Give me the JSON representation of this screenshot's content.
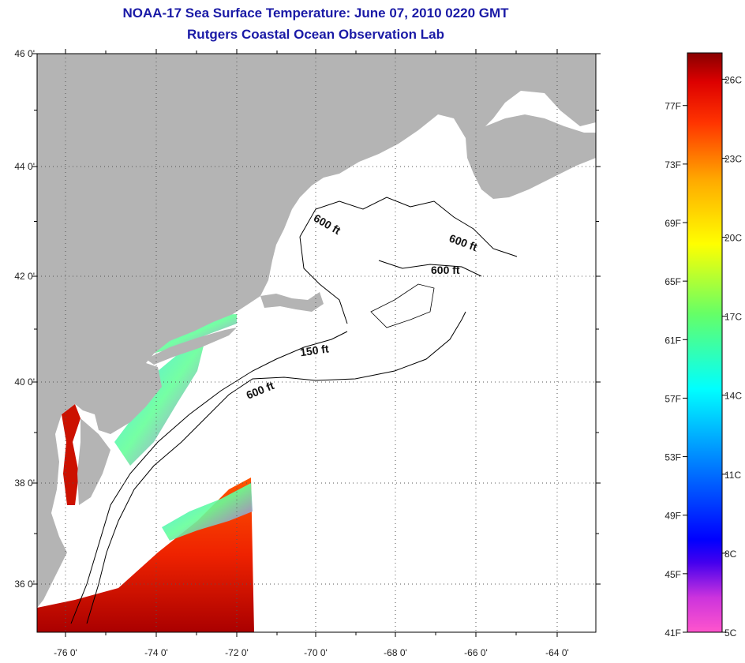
{
  "header": {
    "title": "NOAA-17 Sea Surface Temperature:  June 07, 2010 0220 GMT",
    "subtitle": "Rutgers Coastal Ocean Observation Lab"
  },
  "map": {
    "lat_labels": [
      "46 0'",
      "44 0'",
      "42 0'",
      "40 0'",
      "38 0'",
      "36 0'"
    ],
    "lon_labels": [
      "-76 0'",
      "-74 0'",
      "-72 0'",
      "-70 0'",
      "-68 0'",
      "-66 0'",
      "-64 0'"
    ],
    "contour_labels": [
      "600 ft",
      "600 ft",
      "600 ft",
      "150 ft",
      "600 ft"
    ],
    "colors": {
      "land": "#b4b4b4",
      "ocean_missing": "#ffffff",
      "grid": "#666666"
    }
  },
  "colorbar": {
    "fahrenheit_labels": [
      "77F",
      "73F",
      "69F",
      "65F",
      "61F",
      "57F",
      "53F",
      "49F",
      "45F",
      "41F"
    ],
    "celsius_labels": [
      "26C",
      "23C",
      "20C",
      "17C",
      "14C",
      "11C",
      "8C",
      "5C"
    ],
    "range_c": [
      5,
      27
    ],
    "gradient_stops": [
      "#ff55cc",
      "#aa33dd",
      "#0000ff",
      "#0088ff",
      "#00ffff",
      "#66ff66",
      "#ffff00",
      "#ffaa00",
      "#ff4400",
      "#ee0000",
      "#880000"
    ]
  }
}
